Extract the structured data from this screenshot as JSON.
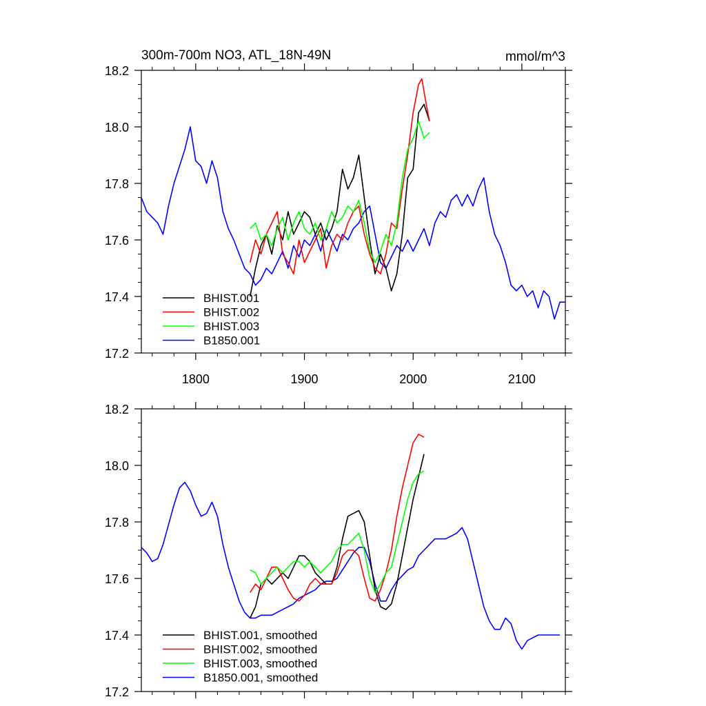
{
  "chart_data": [
    {
      "type": "line",
      "title": "300m-700m NO3, ATL_18N-49N",
      "units": "mmol/m^3",
      "xlim": [
        1750,
        2140
      ],
      "ylim": [
        17.2,
        18.2
      ],
      "x_ticks": [
        1800,
        1900,
        2000,
        2100
      ],
      "x_tick_labels": [
        "1800",
        "1900",
        "2000",
        "2100"
      ],
      "y_ticks": [
        17.2,
        17.4,
        17.6,
        17.8,
        18.0,
        18.2
      ],
      "y_tick_labels": [
        "17.2",
        "17.4",
        "17.6",
        "17.8",
        "18.0",
        "18.2"
      ],
      "legend_position": "bottom-left",
      "series": [
        {
          "name": "BHIST.001",
          "color": "#000000",
          "x": [
            1850,
            1855,
            1860,
            1865,
            1870,
            1875,
            1880,
            1885,
            1890,
            1895,
            1900,
            1905,
            1910,
            1915,
            1920,
            1925,
            1930,
            1935,
            1940,
            1945,
            1950,
            1955,
            1960,
            1965,
            1970,
            1975,
            1980,
            1985,
            1990,
            1995,
            2000,
            2005,
            2010,
            2015
          ],
          "y": [
            17.4,
            17.5,
            17.58,
            17.62,
            17.55,
            17.65,
            17.6,
            17.7,
            17.62,
            17.66,
            17.7,
            17.68,
            17.62,
            17.66,
            17.6,
            17.64,
            17.7,
            17.85,
            17.78,
            17.82,
            17.9,
            17.75,
            17.6,
            17.48,
            17.55,
            17.5,
            17.42,
            17.48,
            17.62,
            17.82,
            17.85,
            18.05,
            18.08,
            18.02
          ]
        },
        {
          "name": "BHIST.002",
          "color": "#ff0000",
          "x": [
            1850,
            1855,
            1860,
            1865,
            1870,
            1875,
            1880,
            1885,
            1890,
            1895,
            1900,
            1905,
            1910,
            1915,
            1920,
            1925,
            1930,
            1935,
            1940,
            1945,
            1950,
            1955,
            1960,
            1965,
            1970,
            1975,
            1980,
            1985,
            1990,
            1995,
            2000,
            2005,
            2008,
            2012,
            2015
          ],
          "y": [
            17.52,
            17.6,
            17.55,
            17.62,
            17.66,
            17.7,
            17.55,
            17.52,
            17.48,
            17.6,
            17.52,
            17.56,
            17.6,
            17.64,
            17.5,
            17.58,
            17.62,
            17.6,
            17.66,
            17.7,
            17.72,
            17.62,
            17.55,
            17.5,
            17.48,
            17.55,
            17.66,
            17.64,
            17.78,
            17.9,
            18.05,
            18.15,
            18.17,
            18.08,
            18.02
          ]
        },
        {
          "name": "BHIST.003",
          "color": "#00ff00",
          "x": [
            1850,
            1855,
            1860,
            1865,
            1870,
            1875,
            1880,
            1885,
            1890,
            1895,
            1900,
            1905,
            1910,
            1915,
            1920,
            1925,
            1930,
            1935,
            1940,
            1945,
            1950,
            1955,
            1960,
            1965,
            1970,
            1975,
            1980,
            1985,
            1990,
            1995,
            2000,
            2005,
            2010,
            2015
          ],
          "y": [
            17.64,
            17.66,
            17.6,
            17.62,
            17.58,
            17.64,
            17.68,
            17.6,
            17.66,
            17.7,
            17.64,
            17.62,
            17.66,
            17.6,
            17.64,
            17.7,
            17.66,
            17.68,
            17.72,
            17.7,
            17.74,
            17.66,
            17.56,
            17.52,
            17.56,
            17.62,
            17.58,
            17.66,
            17.82,
            17.92,
            17.96,
            18.02,
            17.96,
            17.98
          ]
        },
        {
          "name": "B1850.001",
          "color": "#0000ff",
          "x": [
            1750,
            1755,
            1760,
            1765,
            1770,
            1775,
            1780,
            1785,
            1790,
            1795,
            1800,
            1805,
            1810,
            1815,
            1820,
            1825,
            1830,
            1835,
            1840,
            1845,
            1850,
            1855,
            1860,
            1865,
            1870,
            1875,
            1880,
            1885,
            1890,
            1895,
            1900,
            1905,
            1910,
            1915,
            1920,
            1925,
            1930,
            1935,
            1940,
            1945,
            1950,
            1955,
            1960,
            1965,
            1970,
            1975,
            1980,
            1985,
            1990,
            1995,
            2000,
            2005,
            2010,
            2015,
            2020,
            2025,
            2030,
            2035,
            2040,
            2045,
            2050,
            2055,
            2060,
            2065,
            2070,
            2075,
            2080,
            2085,
            2090,
            2095,
            2100,
            2105,
            2110,
            2115,
            2120,
            2125,
            2130,
            2135,
            2140
          ],
          "y": [
            17.75,
            17.7,
            17.68,
            17.66,
            17.62,
            17.72,
            17.8,
            17.86,
            17.92,
            18.0,
            17.88,
            17.86,
            17.8,
            17.88,
            17.82,
            17.7,
            17.64,
            17.6,
            17.55,
            17.5,
            17.48,
            17.44,
            17.46,
            17.5,
            17.48,
            17.52,
            17.56,
            17.5,
            17.58,
            17.54,
            17.6,
            17.58,
            17.62,
            17.56,
            17.64,
            17.6,
            17.56,
            17.62,
            17.6,
            17.64,
            17.66,
            17.7,
            17.72,
            17.62,
            17.52,
            17.5,
            17.54,
            17.58,
            17.56,
            17.6,
            17.56,
            17.6,
            17.64,
            17.58,
            17.66,
            17.7,
            17.68,
            17.74,
            17.76,
            17.72,
            17.76,
            17.72,
            17.78,
            17.82,
            17.7,
            17.62,
            17.58,
            17.52,
            17.44,
            17.42,
            17.44,
            17.4,
            17.42,
            17.36,
            17.42,
            17.4,
            17.32,
            17.38,
            17.38
          ]
        }
      ]
    },
    {
      "type": "line",
      "title": "",
      "xlim": [
        1750,
        2140
      ],
      "ylim": [
        17.2,
        18.2
      ],
      "x_ticks": [
        1800,
        1900,
        2000,
        2100
      ],
      "y_ticks": [
        17.2,
        17.4,
        17.6,
        17.8,
        18.0,
        18.2
      ],
      "y_tick_labels": [
        "17.2",
        "17.4",
        "17.6",
        "17.8",
        "18.0",
        "18.2"
      ],
      "legend_position": "bottom-left",
      "series": [
        {
          "name": "BHIST.001, smoothed",
          "color": "#000000",
          "x": [
            1850,
            1855,
            1860,
            1865,
            1870,
            1875,
            1880,
            1885,
            1890,
            1895,
            1900,
            1905,
            1910,
            1915,
            1920,
            1925,
            1930,
            1935,
            1940,
            1945,
            1950,
            1955,
            1960,
            1965,
            1970,
            1975,
            1980,
            1985,
            1990,
            1995,
            2000,
            2005,
            2010
          ],
          "y": [
            17.46,
            17.5,
            17.58,
            17.6,
            17.58,
            17.6,
            17.62,
            17.6,
            17.64,
            17.68,
            17.68,
            17.66,
            17.62,
            17.6,
            17.58,
            17.58,
            17.64,
            17.74,
            17.82,
            17.83,
            17.84,
            17.8,
            17.68,
            17.56,
            17.5,
            17.49,
            17.51,
            17.58,
            17.68,
            17.78,
            17.88,
            17.96,
            18.04
          ]
        },
        {
          "name": "BHIST.002, smoothed",
          "color": "#ff0000",
          "x": [
            1850,
            1855,
            1860,
            1865,
            1870,
            1875,
            1880,
            1885,
            1890,
            1895,
            1900,
            1905,
            1910,
            1915,
            1920,
            1925,
            1930,
            1935,
            1940,
            1945,
            1950,
            1955,
            1960,
            1965,
            1970,
            1975,
            1980,
            1985,
            1990,
            1995,
            2000,
            2005,
            2010
          ],
          "y": [
            17.55,
            17.58,
            17.56,
            17.6,
            17.64,
            17.64,
            17.6,
            17.56,
            17.53,
            17.52,
            17.54,
            17.58,
            17.6,
            17.58,
            17.58,
            17.58,
            17.62,
            17.68,
            17.7,
            17.7,
            17.68,
            17.6,
            17.53,
            17.52,
            17.56,
            17.62,
            17.7,
            17.82,
            17.92,
            18.0,
            18.08,
            18.11,
            18.1
          ]
        },
        {
          "name": "BHIST.003, smoothed",
          "color": "#00ff00",
          "x": [
            1850,
            1855,
            1860,
            1865,
            1870,
            1875,
            1880,
            1885,
            1890,
            1895,
            1900,
            1905,
            1910,
            1915,
            1920,
            1925,
            1930,
            1935,
            1940,
            1945,
            1950,
            1955,
            1960,
            1965,
            1970,
            1975,
            1980,
            1985,
            1990,
            1995,
            2000,
            2005,
            2010
          ],
          "y": [
            17.63,
            17.62,
            17.58,
            17.6,
            17.62,
            17.64,
            17.62,
            17.64,
            17.66,
            17.66,
            17.64,
            17.66,
            17.64,
            17.62,
            17.64,
            17.66,
            17.7,
            17.72,
            17.72,
            17.74,
            17.76,
            17.7,
            17.6,
            17.55,
            17.58,
            17.62,
            17.64,
            17.72,
            17.8,
            17.88,
            17.94,
            17.97,
            17.98
          ]
        },
        {
          "name": "B1850.001, smoothed",
          "color": "#0000ff",
          "x": [
            1750,
            1755,
            1760,
            1765,
            1770,
            1775,
            1780,
            1785,
            1790,
            1795,
            1800,
            1805,
            1810,
            1815,
            1820,
            1825,
            1830,
            1835,
            1840,
            1845,
            1850,
            1855,
            1860,
            1865,
            1870,
            1875,
            1880,
            1885,
            1890,
            1895,
            1900,
            1905,
            1910,
            1915,
            1920,
            1925,
            1930,
            1935,
            1940,
            1945,
            1950,
            1955,
            1960,
            1965,
            1970,
            1975,
            1980,
            1985,
            1990,
            1995,
            2000,
            2005,
            2010,
            2015,
            2020,
            2025,
            2030,
            2035,
            2040,
            2045,
            2050,
            2055,
            2060,
            2065,
            2070,
            2075,
            2080,
            2085,
            2090,
            2095,
            2100,
            2105,
            2110,
            2115,
            2120,
            2125,
            2130,
            2135
          ],
          "y": [
            17.71,
            17.69,
            17.66,
            17.67,
            17.72,
            17.79,
            17.86,
            17.92,
            17.94,
            17.91,
            17.86,
            17.82,
            17.83,
            17.87,
            17.82,
            17.72,
            17.64,
            17.58,
            17.52,
            17.48,
            17.46,
            17.46,
            17.47,
            17.47,
            17.47,
            17.48,
            17.49,
            17.5,
            17.51,
            17.53,
            17.54,
            17.55,
            17.56,
            17.58,
            17.59,
            17.59,
            17.6,
            17.63,
            17.66,
            17.69,
            17.71,
            17.71,
            17.66,
            17.58,
            17.52,
            17.52,
            17.56,
            17.59,
            17.61,
            17.63,
            17.64,
            17.68,
            17.7,
            17.72,
            17.74,
            17.74,
            17.74,
            17.75,
            17.76,
            17.78,
            17.74,
            17.66,
            17.58,
            17.5,
            17.45,
            17.42,
            17.42,
            17.46,
            17.44,
            17.38,
            17.35,
            17.38,
            17.39,
            17.4,
            17.4,
            17.4,
            17.4,
            17.4
          ]
        }
      ]
    }
  ]
}
